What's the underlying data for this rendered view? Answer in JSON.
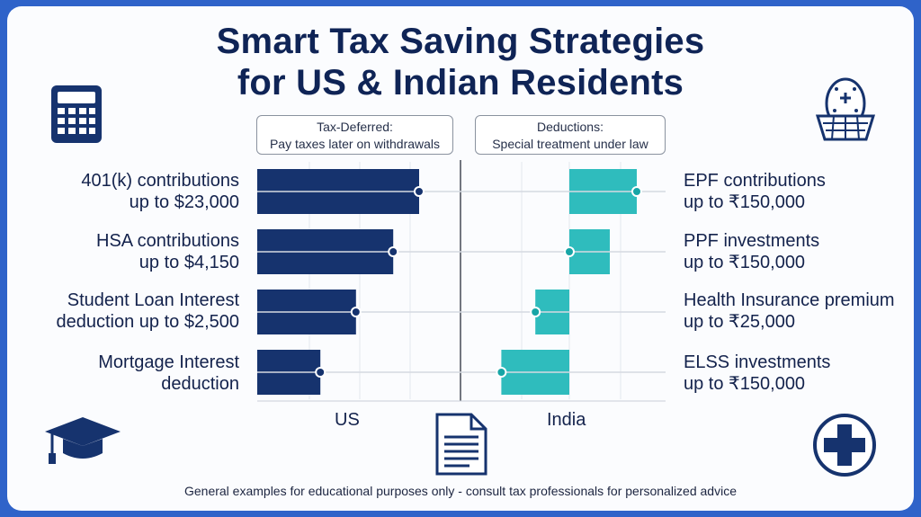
{
  "title_line1": "Smart Tax Saving Strategies",
  "title_line2": "for US & Indian Residents",
  "categories": {
    "us": {
      "line1": "Tax-Deferred:",
      "line2": "Pay taxes later on withdrawals"
    },
    "india": {
      "line1": "Deductions:",
      "line2": "Special treatment under law"
    }
  },
  "chart_data": {
    "type": "bar",
    "title": "Smart Tax Saving Strategies for US & Indian Residents",
    "xlabel_left": "US",
    "xlabel_right": "India",
    "series": [
      {
        "name": "US",
        "direction": "right",
        "color": "#16336e",
        "items": [
          {
            "line1": "401(k) contributions",
            "line2": "up to $23,000",
            "value": 100
          },
          {
            "line1": "HSA contributions",
            "line2": "up to $4,150",
            "value": 84
          },
          {
            "line1": "Student Loan Interest",
            "line2": "deduction up to $2,500",
            "value": 61
          },
          {
            "line1": "Mortgage Interest",
            "line2": "deduction",
            "value": 39
          }
        ]
      },
      {
        "name": "India",
        "direction": "left",
        "color": "#2fbcbd",
        "items": [
          {
            "line1": "EPF contributions",
            "line2": "up to ₹150,000",
            "value": 43
          },
          {
            "line1": "PPF investments",
            "line2": "up to ₹150,000",
            "value": 26
          },
          {
            "line1": "Health Insurance premium",
            "line2": "up to ₹25,000",
            "value": 21
          },
          {
            "line1": "ELSS investments",
            "line2": "up to ₹150,000",
            "value": 42
          }
        ]
      }
    ]
  },
  "footnote": "General examples for educational purposes only - consult tax professionals for personalized advice",
  "icons": [
    "calculator-icon",
    "nest-egg-icon",
    "graduation-cap-icon",
    "document-icon",
    "medical-cross-icon"
  ],
  "colors": {
    "frame": "#2f63c9",
    "navy": "#16336e",
    "teal": "#2fbcbd",
    "title": "#0f2456"
  }
}
